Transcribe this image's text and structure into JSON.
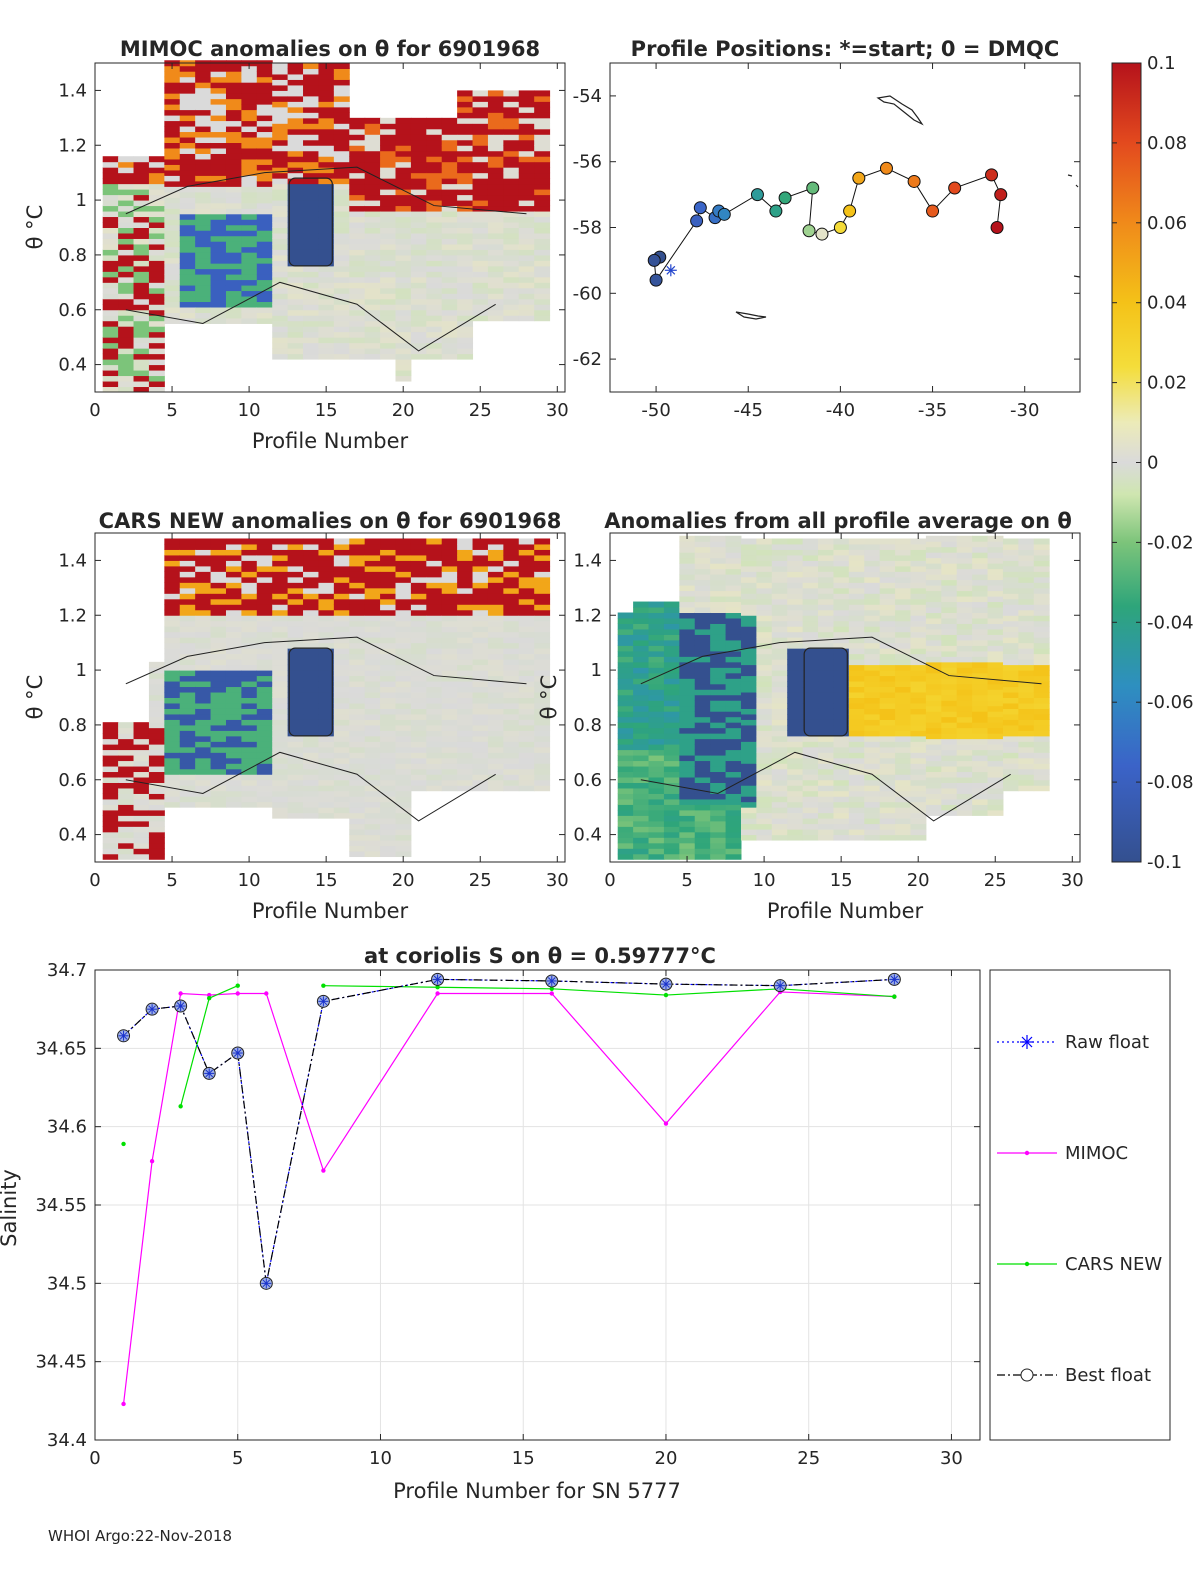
{
  "footer": "WHOI Argo:22-Nov-2018",
  "panels": {
    "p1": {
      "title": "MIMOC anomalies on θ  for 6901968",
      "ylabel": "θ °C",
      "xlabel": "Profile Number"
    },
    "p2": {
      "title": "Profile Positions: *=start; 0 = DMQC"
    },
    "p3": {
      "title": "CARS NEW anomalies on θ for 6901968",
      "ylabel": "θ °C",
      "xlabel": "Profile Number"
    },
    "p4": {
      "title": "Anomalies from all profile average on θ",
      "ylabel": "θ °C",
      "xlabel": "Profile Number"
    },
    "p5": {
      "title": "at coriolis S on θ = 0.59777°C",
      "ylabel": "Salinity",
      "xlabel": "Profile Number for SN 5777"
    }
  },
  "chart_data": [
    {
      "type": "heatmap",
      "id": "mimoc",
      "title": "MIMOC anomalies on θ  for 6901968",
      "xlabel": "Profile Number",
      "ylabel": "θ °C",
      "xlim": [
        0,
        30.5
      ],
      "ylim": [
        0.3,
        1.5
      ],
      "xticks": [
        0,
        5,
        10,
        15,
        20,
        25,
        30
      ],
      "yticks": [
        0.4,
        0.6,
        0.8,
        1,
        1.2,
        1.4
      ],
      "ytick_labels": [
        "0.4",
        "0.6",
        "0.8",
        "1",
        "1.2",
        "1.4"
      ]
    },
    {
      "type": "scatter",
      "id": "positions",
      "title": "Profile Positions: *=start; 0 = DMQC",
      "xlim": [
        -52.5,
        -27
      ],
      "ylim": [
        -63,
        -53
      ],
      "xticks": [
        -50,
        -45,
        -40,
        -35,
        -30
      ],
      "yticks": [
        -62,
        -60,
        -58,
        -56,
        -54
      ],
      "start": {
        "lon": -49.2,
        "lat": -59.3
      },
      "track": [
        {
          "lon": -49.8,
          "lat": -58.9,
          "v": -0.1
        },
        {
          "lon": -50.1,
          "lat": -59.0,
          "v": -0.097
        },
        {
          "lon": -50.0,
          "lat": -59.6,
          "v": -0.095
        },
        {
          "lon": -47.8,
          "lat": -57.8,
          "v": -0.08
        },
        {
          "lon": -47.6,
          "lat": -57.4,
          "v": -0.075
        },
        {
          "lon": -46.8,
          "lat": -57.7,
          "v": -0.07
        },
        {
          "lon": -46.6,
          "lat": -57.5,
          "v": -0.065
        },
        {
          "lon": -46.3,
          "lat": -57.6,
          "v": -0.06
        },
        {
          "lon": -44.5,
          "lat": -57.0,
          "v": -0.045
        },
        {
          "lon": -43.5,
          "lat": -57.5,
          "v": -0.04
        },
        {
          "lon": -43.0,
          "lat": -57.1,
          "v": -0.035
        },
        {
          "lon": -41.5,
          "lat": -56.8,
          "v": -0.025
        },
        {
          "lon": -41.7,
          "lat": -58.1,
          "v": -0.015
        },
        {
          "lon": -41.0,
          "lat": -58.2,
          "v": 0.005
        },
        {
          "lon": -40.0,
          "lat": -58.0,
          "v": 0.025
        },
        {
          "lon": -39.5,
          "lat": -57.5,
          "v": 0.04
        },
        {
          "lon": -39.0,
          "lat": -56.5,
          "v": 0.05
        },
        {
          "lon": -37.5,
          "lat": -56.2,
          "v": 0.06
        },
        {
          "lon": -36.0,
          "lat": -56.6,
          "v": 0.065
        },
        {
          "lon": -35.0,
          "lat": -57.5,
          "v": 0.075
        },
        {
          "lon": -33.8,
          "lat": -56.8,
          "v": 0.08
        },
        {
          "lon": -31.8,
          "lat": -56.4,
          "v": 0.09
        },
        {
          "lon": -31.3,
          "lat": -57.0,
          "v": 0.095
        },
        {
          "lon": -31.5,
          "lat": -58.0,
          "v": 0.1
        }
      ]
    },
    {
      "type": "heatmap",
      "id": "cars",
      "title": "CARS NEW anomalies on θ for 6901968",
      "xlabel": "Profile Number",
      "ylabel": "θ °C",
      "xlim": [
        0,
        30.5
      ],
      "ylim": [
        0.3,
        1.5
      ],
      "xticks": [
        0,
        5,
        10,
        15,
        20,
        25,
        30
      ],
      "yticks": [
        0.4,
        0.6,
        0.8,
        1,
        1.2,
        1.4
      ],
      "ytick_labels": [
        "0.4",
        "0.6",
        "0.8",
        "1",
        "1.2",
        "1.4"
      ]
    },
    {
      "type": "heatmap",
      "id": "allavg",
      "title": "Anomalies from all profile average on θ",
      "xlabel": "Profile Number",
      "ylabel": "θ °C",
      "xlim": [
        0,
        30.5
      ],
      "ylim": [
        0.3,
        1.5
      ],
      "xticks": [
        0,
        5,
        10,
        15,
        20,
        25,
        30
      ],
      "yticks": [
        0.4,
        0.6,
        0.8,
        1,
        1.2,
        1.4
      ],
      "ytick_labels": [
        "0.4",
        "0.6",
        "0.8",
        "1",
        "1.2",
        "1.4"
      ]
    },
    {
      "type": "colorbar",
      "id": "colorbar",
      "range": [
        -0.1,
        0.1
      ],
      "ticks": [
        0.1,
        0.08,
        0.06,
        0.04,
        0.02,
        0,
        -0.02,
        -0.04,
        -0.06,
        -0.08,
        -0.1
      ],
      "tick_labels": [
        "0.1",
        "0.08",
        "0.06",
        "0.04",
        "0.02",
        "0",
        "-0.02",
        "-0.04",
        "-0.06",
        "-0.08",
        "-0.1"
      ]
    },
    {
      "type": "line",
      "id": "salinity",
      "title": "at coriolis S on θ = 0.59777°C",
      "xlabel": "Profile Number for SN 5777",
      "ylabel": "Salinity",
      "xlim": [
        0,
        31
      ],
      "ylim": [
        34.4,
        34.7
      ],
      "xticks": [
        0,
        5,
        10,
        15,
        20,
        25,
        30
      ],
      "yticks": [
        34.4,
        34.45,
        34.5,
        34.55,
        34.6,
        34.65,
        34.7
      ],
      "ytick_labels": [
        "34.4",
        "34.45",
        "34.5",
        "34.55",
        "34.6",
        "34.65",
        "34.7"
      ],
      "grid": true,
      "legend": [
        "Raw float",
        "MIMOC",
        "CARS NEW",
        "Best float"
      ],
      "series": [
        {
          "name": "Raw float",
          "color": "#0000ff",
          "x": [
            1,
            2,
            3,
            4,
            5,
            6,
            8,
            12,
            16,
            20,
            24,
            28
          ],
          "y": [
            34.658,
            34.675,
            34.677,
            34.634,
            34.647,
            34.5,
            34.68,
            34.694,
            34.693,
            34.691,
            34.69,
            34.694
          ]
        },
        {
          "name": "MIMOC",
          "color": "#ff00ff",
          "x": [
            1,
            2,
            3,
            4,
            5,
            6,
            8,
            12,
            16,
            20,
            24,
            28
          ],
          "y": [
            34.423,
            34.578,
            34.685,
            34.684,
            34.685,
            34.685,
            34.572,
            34.685,
            34.685,
            34.602,
            34.686,
            34.683
          ]
        },
        {
          "name": "CARS NEW",
          "color": "#00e000",
          "segments": [
            {
              "x": [
                1
              ],
              "y": [
                34.589
              ]
            },
            {
              "x": [
                3,
                4,
                5
              ],
              "y": [
                34.613,
                34.682,
                34.69
              ]
            },
            {
              "x": [
                8,
                12,
                16,
                20,
                24,
                28
              ],
              "y": [
                34.69,
                34.689,
                34.688,
                34.684,
                34.688,
                34.683
              ]
            }
          ]
        },
        {
          "name": "Best float",
          "color": "#000000",
          "x": [
            1,
            2,
            3,
            4,
            5,
            6,
            8,
            12,
            16,
            20,
            24,
            28
          ],
          "y": [
            34.658,
            34.675,
            34.677,
            34.634,
            34.647,
            34.5,
            34.68,
            34.694,
            34.693,
            34.691,
            34.69,
            34.694
          ]
        }
      ]
    }
  ]
}
